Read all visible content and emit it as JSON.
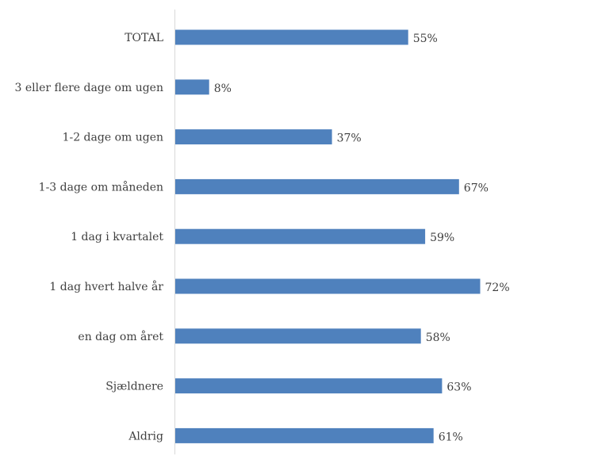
{
  "chart_data": {
    "type": "bar",
    "orientation": "horizontal",
    "title": "",
    "xlabel": "",
    "ylabel": "",
    "categories": [
      "TOTAL",
      "3 eller flere dage om ugen",
      "1-2 dage om ugen",
      "1-3 dage om måneden",
      "1 dag i kvartalet",
      "1 dag hvert halve år",
      "en dag om året",
      "Sjældnere",
      "Aldrig"
    ],
    "values": [
      55,
      8,
      37,
      67,
      59,
      72,
      58,
      63,
      61
    ],
    "value_labels": [
      "55%",
      "8%",
      "37%",
      "67%",
      "59%",
      "72%",
      "58%",
      "63%",
      "61%"
    ],
    "unit": "%",
    "xlim": [
      0,
      100
    ],
    "grid": false,
    "legend": "none",
    "bar_color": "#4f81bd",
    "axis_color": "#d9d9d9",
    "text_color": "#404040"
  }
}
